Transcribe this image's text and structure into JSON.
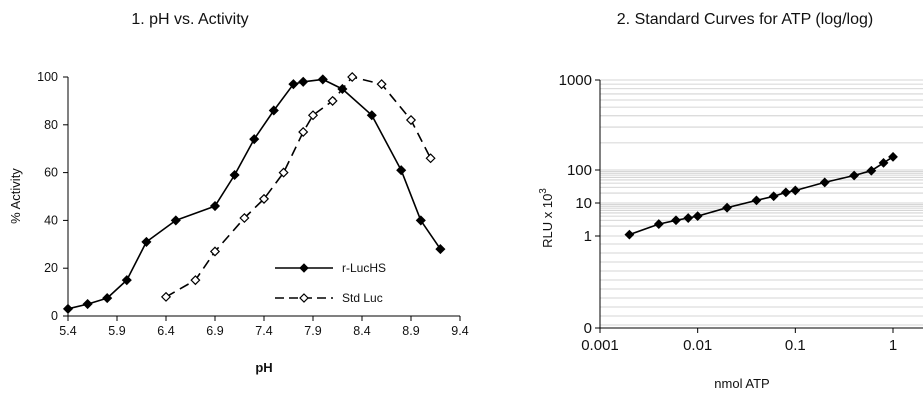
{
  "chart_data": [
    {
      "type": "line",
      "title": "1.   pH vs. Activity",
      "xlabel": "pH",
      "ylabel": "% Activity",
      "xlim": [
        5.4,
        9.4
      ],
      "ylim": [
        0,
        100
      ],
      "x_ticks": [
        "5.4",
        "5.9",
        "6.4",
        "6.9",
        "7.4",
        "7.9",
        "8.4",
        "8.9",
        "9.4"
      ],
      "y_ticks": [
        "0",
        "20",
        "40",
        "60",
        "80",
        "100"
      ],
      "grid": false,
      "legend_position": "lower-right",
      "series": [
        {
          "name": "r-LucHS",
          "marker": "filled-diamond",
          "line": "solid",
          "x": [
            5.4,
            5.6,
            5.8,
            6.0,
            6.2,
            6.5,
            6.9,
            7.1,
            7.3,
            7.5,
            7.7,
            7.8,
            8.0,
            8.2,
            8.5,
            8.8,
            9.0,
            9.2
          ],
          "y": [
            3,
            5,
            7.5,
            15,
            31,
            40,
            46,
            59,
            74,
            86,
            97,
            98,
            99,
            95,
            84,
            61,
            40,
            28
          ]
        },
        {
          "name": "Std Luc",
          "marker": "open-diamond",
          "line": "dashed",
          "x": [
            6.4,
            6.7,
            6.9,
            7.2,
            7.4,
            7.6,
            7.8,
            7.9,
            8.1,
            8.3,
            8.6,
            8.9,
            9.1
          ],
          "y": [
            8,
            15,
            27,
            41,
            49,
            60,
            77,
            84,
            90,
            100,
            97,
            82,
            66
          ]
        }
      ]
    },
    {
      "type": "line",
      "title": "2.  Standard Curves for ATP (log/log)",
      "xlabel": "nmol ATP",
      "ylabel": "RLU x 10",
      "ylabel_superscript": "3",
      "x_scale": "log",
      "y_scale": "log",
      "xlim": [
        0.001,
        1
      ],
      "ylim_labels": [
        "0",
        "1",
        "10",
        "100",
        "1000"
      ],
      "x_ticks": [
        "0.001",
        "0.01",
        "0.1",
        "1"
      ],
      "grid": true,
      "legend_position": "none",
      "series": [
        {
          "marker": "filled-diamond",
          "line": "solid",
          "x": [
            0.002,
            0.004,
            0.006,
            0.008,
            0.01,
            0.02,
            0.04,
            0.06,
            0.08,
            0.1,
            0.2,
            0.4,
            0.6,
            0.8,
            1.0
          ],
          "y": [
            1.1,
            2.3,
            3.0,
            3.5,
            4.0,
            7.2,
            12,
            16,
            21,
            24,
            42,
            68,
            95,
            120,
            140
          ]
        }
      ]
    }
  ],
  "legend": {
    "items": [
      {
        "label": "r-LucHS"
      },
      {
        "label": "Std Luc"
      }
    ]
  }
}
